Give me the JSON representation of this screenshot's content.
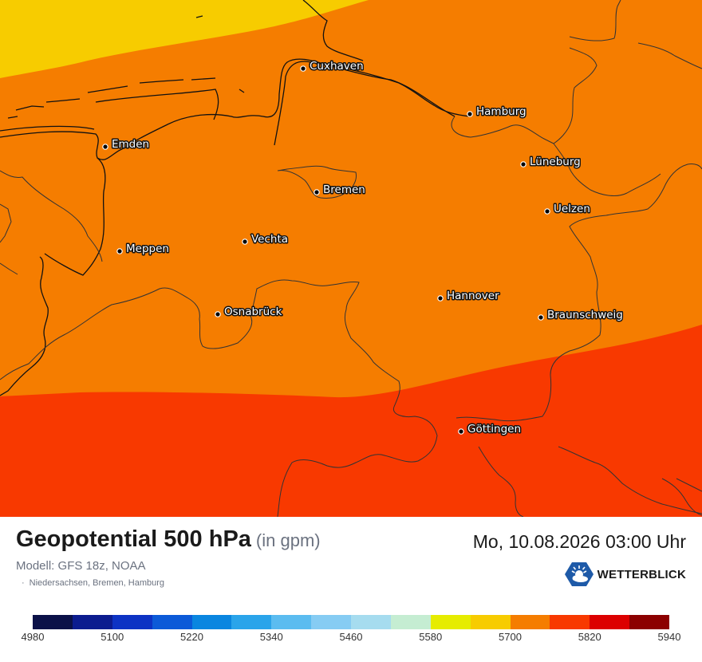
{
  "map": {
    "colors": {
      "band_5640": "#f7cc00",
      "band_5700": "#f57d00",
      "band_5760": "#f83900",
      "border": "#333333",
      "coast": "#111111"
    },
    "cities": [
      {
        "name": "Cuxhaven"
      },
      {
        "name": "Hamburg"
      },
      {
        "name": "Emden"
      },
      {
        "name": "Bremen"
      },
      {
        "name": "Lüneburg"
      },
      {
        "name": "Uelzen"
      },
      {
        "name": "Meppen"
      },
      {
        "name": "Vechta"
      },
      {
        "name": "Osnabrück"
      },
      {
        "name": "Hannover"
      },
      {
        "name": "Braunschweig"
      },
      {
        "name": "Göttingen"
      }
    ]
  },
  "footer": {
    "title": "Geopotential 500 hPa",
    "unit": "(in gpm)",
    "datetime": "Mo, 10.08.2026 03:00 Uhr",
    "model": "Modell: GFS 18z, NOAA",
    "region": "Niedersachsen, Bremen, Hamburg",
    "region_bullet": "·",
    "brand": "WETTERBLICK",
    "brand_icon": "sun-cloud-logo-icon"
  },
  "legend": {
    "colors": [
      "#0b1148",
      "#0c1c8f",
      "#0d33c4",
      "#0c5ad8",
      "#0a86e0",
      "#2aa4ea",
      "#5bbcf0",
      "#86ccf3",
      "#a6dcef",
      "#c5edd2",
      "#e6ec00",
      "#f7cc00",
      "#f57d00",
      "#f83900",
      "#dc0000",
      "#8c0000"
    ],
    "ticks": [
      "4980",
      "5100",
      "5220",
      "5340",
      "5460",
      "5580",
      "5700",
      "5820",
      "5940"
    ]
  }
}
